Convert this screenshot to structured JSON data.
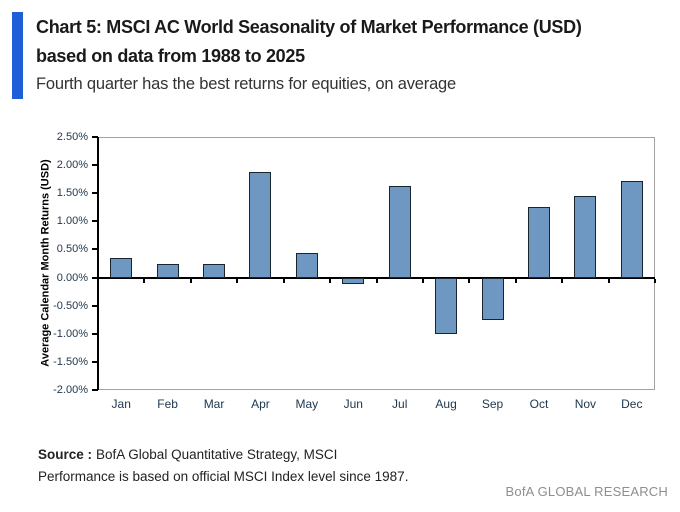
{
  "header": {
    "title_line1": "Chart 5: MSCI AC World Seasonality of Market Performance (USD)",
    "title_line2": "based on data from 1988 to 2025",
    "subtitle": "Fourth quarter has the best returns for equities, on average",
    "accent_color": "#1e5ed6"
  },
  "chart_data": {
    "type": "bar",
    "title": "Chart 5: MSCI AC World Seasonality of Market Performance (USD) based on data from 1988 to 2025",
    "subtitle": "Fourth quarter has the best returns for equities, on average",
    "categories": [
      "Jan",
      "Feb",
      "Mar",
      "Apr",
      "May",
      "Jun",
      "Jul",
      "Aug",
      "Sep",
      "Oct",
      "Nov",
      "Dec"
    ],
    "values": [
      0.35,
      0.24,
      0.24,
      1.87,
      0.44,
      -0.12,
      1.62,
      -1.0,
      -0.75,
      1.26,
      1.45,
      1.71
    ],
    "xlabel": "",
    "ylabel": "Average Calendar Month Returns (USD)",
    "ylim": [
      -2.0,
      2.5
    ],
    "ytick_values": [
      2.5,
      2.0,
      1.5,
      1.0,
      0.5,
      0.0,
      -0.5,
      -1.0,
      -1.5,
      -2.0
    ],
    "ytick_labels": [
      "2.50%",
      "2.00%",
      "1.50%",
      "1.00%",
      "0.50%",
      "0.00%",
      "-0.50%",
      "-1.00%",
      "-1.50%",
      "-2.00%"
    ],
    "grid": false,
    "legend": "none",
    "bar_fill": "#6e97c2",
    "bar_border": "#19242f"
  },
  "footer": {
    "source_label": "Source :",
    "source_text": "BofA Global Quantitative Strategy, MSCI",
    "note": "Performance is based on official MSCI Index level since 1987.",
    "brand": "BofA GLOBAL RESEARCH"
  }
}
